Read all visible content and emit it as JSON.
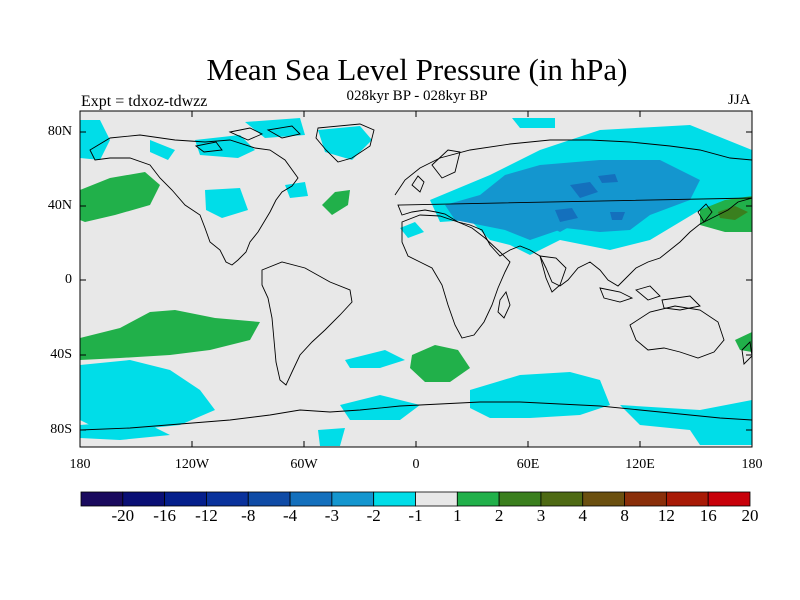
{
  "title": "Mean Sea Level Pressure (in hPa)",
  "subtitle": "028kyr BP - 028kyr BP",
  "experiment": "Expt = tdxoz-tdwzz",
  "season": "JJA",
  "axes": {
    "lat_labels": [
      "80N",
      "40N",
      "0",
      "40S",
      "80S"
    ],
    "lon_labels": [
      "180",
      "120W",
      "60W",
      "0",
      "60E",
      "120E",
      "180"
    ]
  },
  "colorbar": {
    "labels": [
      "-20",
      "-16",
      "-12",
      "-8",
      "-4",
      "-3",
      "-2",
      "-1",
      "1",
      "2",
      "3",
      "4",
      "8",
      "12",
      "16",
      "20"
    ],
    "colors": [
      "#1a0a5e",
      "#0a0f75",
      "#051f8c",
      "#0a329c",
      "#0f4ba6",
      "#1470bd",
      "#1496cf",
      "#00dde8",
      "#e8e8e8",
      "#21b04a",
      "#3a7f1e",
      "#4e6a14",
      "#6b5010",
      "#8a2f0a",
      "#a81a06",
      "#c8000a"
    ]
  },
  "colors": {
    "land_outline": "#000000",
    "background_field": "#e8e8e8",
    "negative_weak": "#00dde8",
    "negative_mid": "#1496cf",
    "negative_strong": "#1470bd",
    "positive_weak": "#21b04a",
    "positive_mid": "#3a7f1e"
  }
}
